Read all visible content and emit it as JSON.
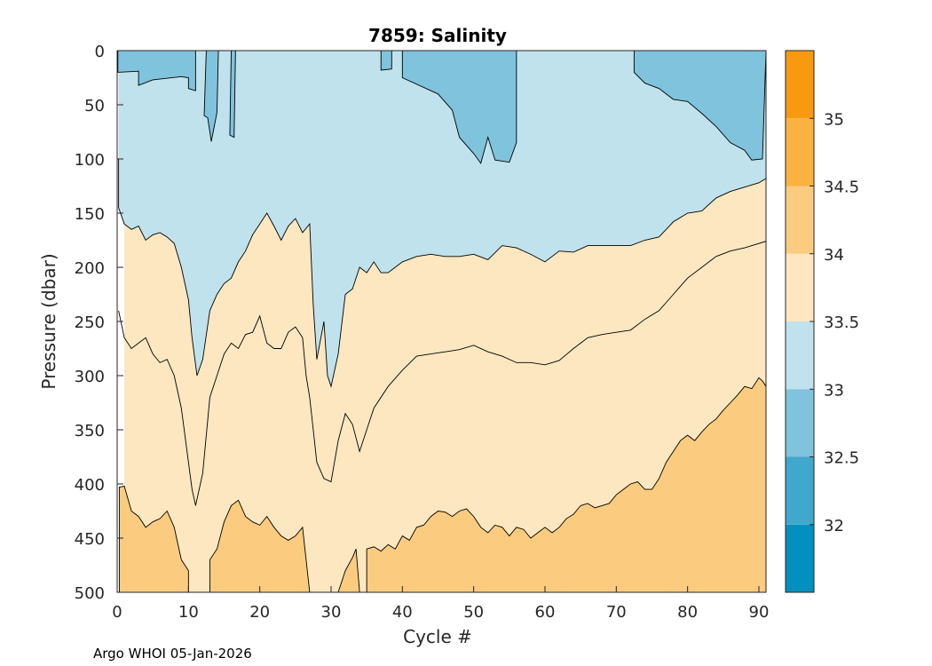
{
  "chart_data": {
    "type": "contour",
    "title": "7859:  Salinity",
    "xlabel": "Cycle #",
    "ylabel": "Pressure (dbar)",
    "xlim": [
      0,
      91
    ],
    "ylim": [
      0,
      500
    ],
    "y_reversed": true,
    "xticks": [
      0,
      10,
      20,
      30,
      40,
      50,
      60,
      70,
      80,
      90
    ],
    "yticks": [
      0,
      50,
      100,
      150,
      200,
      250,
      300,
      350,
      400,
      450,
      500
    ],
    "footer": "Argo WHOI 05-Jan-2026",
    "colorbar": {
      "range": [
        31.5,
        35.5
      ],
      "tick_values": [
        32,
        32.5,
        33,
        33.5,
        34,
        34.5,
        35
      ],
      "tick_labels": [
        "32",
        "32.5",
        "33",
        "33.5",
        "34",
        "34.5",
        "35"
      ],
      "levels": [
        {
          "from": 31.5,
          "to": 32.0,
          "color": "#0490BF"
        },
        {
          "from": 32.0,
          "to": 32.5,
          "color": "#40A8CC"
        },
        {
          "from": 32.5,
          "to": 33.0,
          "color": "#80C3DD"
        },
        {
          "from": 33.0,
          "to": 33.5,
          "color": "#C0E2EC"
        },
        {
          "from": 33.5,
          "to": 34.0,
          "color": "#FCE7C0"
        },
        {
          "from": 34.0,
          "to": 34.5,
          "color": "#FBCC7F"
        },
        {
          "from": 34.5,
          "to": 35.0,
          "color": "#FAB241"
        },
        {
          "from": 35.0,
          "to": 35.5,
          "color": "#F89A10"
        }
      ]
    },
    "contours": [
      {
        "level": 32.5,
        "fill": "#80C3DD",
        "region": "top-left",
        "points": [
          [
            0.1,
            0
          ],
          [
            0.1,
            20
          ],
          [
            3,
            19
          ],
          [
            3,
            32
          ],
          [
            5,
            27
          ],
          [
            9,
            24
          ],
          [
            10,
            25
          ],
          [
            10,
            35
          ],
          [
            11,
            37
          ],
          [
            11,
            0
          ]
        ]
      },
      {
        "level": 32.5,
        "fill": "#80C3DD",
        "region": "top-center",
        "points": [
          [
            37,
            0
          ],
          [
            37,
            18
          ],
          [
            38.5,
            17
          ],
          [
            38.5,
            0
          ],
          [
            40,
            0
          ],
          [
            40,
            25
          ],
          [
            45,
            40
          ],
          [
            47,
            55
          ],
          [
            48,
            80
          ],
          [
            50,
            95
          ],
          [
            51,
            104
          ],
          [
            52,
            80
          ],
          [
            53,
            101
          ],
          [
            55,
            103
          ],
          [
            56,
            85
          ],
          [
            56,
            0
          ]
        ]
      },
      {
        "level": 32.5,
        "fill": "#80C3DD",
        "region": "top-right",
        "points": [
          [
            72.5,
            0
          ],
          [
            72.5,
            20
          ],
          [
            74,
            30
          ],
          [
            76,
            35
          ],
          [
            78,
            45
          ],
          [
            80,
            47
          ],
          [
            82,
            58
          ],
          [
            84,
            70
          ],
          [
            86,
            85
          ],
          [
            88,
            92
          ],
          [
            89,
            101
          ],
          [
            90.5,
            100
          ],
          [
            91,
            0
          ]
        ]
      },
      {
        "level": 32.5,
        "fill": "#80C3DD",
        "region": "spike-12",
        "points": [
          [
            12.5,
            0
          ],
          [
            12.2,
            60
          ],
          [
            12.7,
            62
          ],
          [
            13.2,
            84
          ],
          [
            14,
            57
          ],
          [
            14.2,
            0
          ]
        ]
      },
      {
        "level": 32.5,
        "fill": "#80C3DD",
        "region": "spike-16",
        "points": [
          [
            16,
            0
          ],
          [
            15.8,
            78
          ],
          [
            16.4,
            80
          ],
          [
            16.6,
            0
          ]
        ]
      },
      {
        "level": 33.0,
        "stroke_only": true,
        "points": [
          [
            0.2,
            100
          ],
          [
            0.2,
            145
          ],
          [
            1,
            160
          ],
          [
            2,
            165
          ],
          [
            3,
            162
          ],
          [
            4,
            175
          ],
          [
            5,
            170
          ],
          [
            6,
            168
          ],
          [
            7,
            172
          ],
          [
            8,
            178
          ],
          [
            9,
            200
          ],
          [
            10,
            230
          ],
          [
            10.5,
            265
          ],
          [
            11,
            290
          ],
          [
            11.2,
            300
          ],
          [
            12,
            285
          ],
          [
            13,
            240
          ],
          [
            14,
            225
          ],
          [
            15,
            215
          ],
          [
            16,
            210
          ],
          [
            17,
            195
          ],
          [
            18,
            185
          ],
          [
            19,
            170
          ],
          [
            20,
            160
          ],
          [
            21,
            150
          ],
          [
            22,
            162
          ],
          [
            23,
            175
          ],
          [
            24,
            162
          ],
          [
            25,
            155
          ],
          [
            26,
            168
          ],
          [
            27,
            160
          ],
          [
            27.5,
            235
          ],
          [
            28,
            285
          ],
          [
            29,
            250
          ],
          [
            29.5,
            300
          ],
          [
            30,
            310
          ],
          [
            31,
            280
          ],
          [
            32,
            225
          ],
          [
            33,
            220
          ],
          [
            34,
            200
          ],
          [
            35,
            205
          ],
          [
            36,
            195
          ],
          [
            37,
            205
          ],
          [
            38,
            205
          ],
          [
            39,
            200
          ],
          [
            40,
            195
          ],
          [
            42,
            190
          ],
          [
            44,
            188
          ],
          [
            46,
            190
          ],
          [
            48,
            190
          ],
          [
            50,
            188
          ],
          [
            52,
            193
          ],
          [
            54,
            180
          ],
          [
            56,
            182
          ],
          [
            58,
            188
          ],
          [
            60,
            195
          ],
          [
            62,
            185
          ],
          [
            64,
            186
          ],
          [
            66,
            180
          ],
          [
            68,
            180
          ],
          [
            70,
            180
          ],
          [
            72,
            180
          ],
          [
            74,
            175
          ],
          [
            76,
            172
          ],
          [
            78,
            158
          ],
          [
            80,
            150
          ],
          [
            82,
            148
          ],
          [
            84,
            136
          ],
          [
            86,
            130
          ],
          [
            88,
            126
          ],
          [
            90,
            122
          ],
          [
            91,
            118
          ]
        ]
      },
      {
        "level": 33.5,
        "stroke_only": true,
        "points": [
          [
            0.2,
            240
          ],
          [
            1,
            265
          ],
          [
            2,
            275
          ],
          [
            3,
            270
          ],
          [
            4,
            265
          ],
          [
            5,
            280
          ],
          [
            6,
            288
          ],
          [
            7,
            285
          ],
          [
            8,
            300
          ],
          [
            9,
            330
          ],
          [
            10,
            380
          ],
          [
            10.5,
            405
          ],
          [
            11,
            420
          ],
          [
            12,
            390
          ],
          [
            13,
            320
          ],
          [
            14,
            300
          ],
          [
            15,
            280
          ],
          [
            16,
            270
          ],
          [
            17,
            275
          ],
          [
            18,
            262
          ],
          [
            19,
            260
          ],
          [
            20,
            245
          ],
          [
            21,
            270
          ],
          [
            22,
            275
          ],
          [
            23,
            275
          ],
          [
            24,
            260
          ],
          [
            25,
            255
          ],
          [
            26,
            265
          ],
          [
            26.5,
            300
          ],
          [
            27,
            320
          ],
          [
            27.5,
            350
          ],
          [
            28,
            380
          ],
          [
            29,
            395
          ],
          [
            30,
            398
          ],
          [
            31,
            360
          ],
          [
            32,
            335
          ],
          [
            33,
            345
          ],
          [
            34,
            370
          ],
          [
            35,
            350
          ],
          [
            36,
            330
          ],
          [
            38,
            310
          ],
          [
            40,
            295
          ],
          [
            42,
            282
          ],
          [
            44,
            280
          ],
          [
            46,
            278
          ],
          [
            48,
            276
          ],
          [
            50,
            272
          ],
          [
            52,
            278
          ],
          [
            54,
            282
          ],
          [
            56,
            288
          ],
          [
            58,
            288
          ],
          [
            60,
            290
          ],
          [
            62,
            286
          ],
          [
            64,
            275
          ],
          [
            66,
            265
          ],
          [
            68,
            262
          ],
          [
            70,
            260
          ],
          [
            72,
            258
          ],
          [
            74,
            248
          ],
          [
            76,
            240
          ],
          [
            78,
            225
          ],
          [
            80,
            210
          ],
          [
            82,
            200
          ],
          [
            84,
            190
          ],
          [
            86,
            185
          ],
          [
            88,
            182
          ],
          [
            90,
            178
          ],
          [
            91,
            176
          ]
        ]
      },
      {
        "level": 34.0,
        "fill": "#FBCC7F",
        "region": "bottom-left",
        "points": [
          [
            0.3,
            500
          ],
          [
            0.3,
            403
          ],
          [
            1,
            402
          ],
          [
            2,
            425
          ],
          [
            3,
            430
          ],
          [
            4,
            440
          ],
          [
            5,
            435
          ],
          [
            6,
            432
          ],
          [
            7,
            425
          ],
          [
            8,
            440
          ],
          [
            9,
            470
          ],
          [
            10,
            480
          ],
          [
            10,
            500
          ]
        ]
      },
      {
        "level": 34.0,
        "fill": "#FBCC7F",
        "region": "bottom-middle",
        "points": [
          [
            13,
            500
          ],
          [
            13,
            470
          ],
          [
            14,
            460
          ],
          [
            15,
            435
          ],
          [
            16,
            420
          ],
          [
            17,
            415
          ],
          [
            18,
            430
          ],
          [
            19,
            435
          ],
          [
            20,
            438
          ],
          [
            21,
            430
          ],
          [
            22,
            440
          ],
          [
            23,
            448
          ],
          [
            24,
            452
          ],
          [
            25,
            448
          ],
          [
            26,
            440
          ],
          [
            26.5,
            470
          ],
          [
            27,
            500
          ]
        ]
      },
      {
        "level": 34.0,
        "fill": "#FBCC7F",
        "region": "bottom-small",
        "points": [
          [
            31,
            500
          ],
          [
            32,
            480
          ],
          [
            33,
            468
          ],
          [
            33.5,
            460
          ],
          [
            34,
            500
          ]
        ]
      },
      {
        "level": 34.0,
        "fill": "#FBCC7F",
        "region": "bottom-right",
        "points": [
          [
            35,
            500
          ],
          [
            35,
            460
          ],
          [
            36,
            458
          ],
          [
            37,
            462
          ],
          [
            38,
            456
          ],
          [
            39,
            460
          ],
          [
            40,
            448
          ],
          [
            41,
            452
          ],
          [
            42,
            440
          ],
          [
            43,
            438
          ],
          [
            44,
            430
          ],
          [
            45,
            425
          ],
          [
            46,
            426
          ],
          [
            47,
            430
          ],
          [
            48,
            425
          ],
          [
            49,
            423
          ],
          [
            50,
            430
          ],
          [
            51,
            440
          ],
          [
            52,
            445
          ],
          [
            53,
            438
          ],
          [
            54,
            440
          ],
          [
            55,
            448
          ],
          [
            56,
            440
          ],
          [
            57,
            442
          ],
          [
            58,
            450
          ],
          [
            59,
            445
          ],
          [
            60,
            440
          ],
          [
            61,
            445
          ],
          [
            62,
            440
          ],
          [
            63,
            432
          ],
          [
            64,
            428
          ],
          [
            65,
            420
          ],
          [
            66,
            418
          ],
          [
            67,
            422
          ],
          [
            68,
            420
          ],
          [
            69,
            418
          ],
          [
            70,
            410
          ],
          [
            71,
            405
          ],
          [
            72,
            400
          ],
          [
            73,
            398
          ],
          [
            74,
            405
          ],
          [
            75,
            405
          ],
          [
            76,
            395
          ],
          [
            77,
            380
          ],
          [
            78,
            370
          ],
          [
            79,
            360
          ],
          [
            80,
            355
          ],
          [
            81,
            360
          ],
          [
            82,
            352
          ],
          [
            83,
            345
          ],
          [
            84,
            340
          ],
          [
            85,
            332
          ],
          [
            86,
            325
          ],
          [
            87,
            318
          ],
          [
            88,
            310
          ],
          [
            89,
            312
          ],
          [
            90,
            302
          ],
          [
            90.5,
            305
          ],
          [
            91,
            310
          ],
          [
            91,
            500
          ]
        ]
      }
    ]
  }
}
